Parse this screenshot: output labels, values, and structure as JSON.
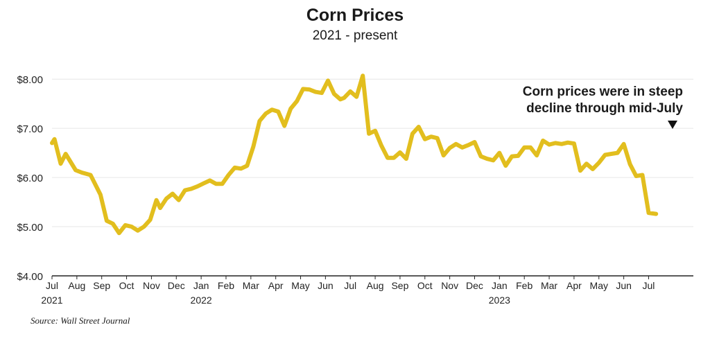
{
  "chart_data": {
    "type": "line",
    "title": "Corn Prices",
    "subtitle": "2021 - present",
    "xlabel": "",
    "ylabel": "",
    "ylim": [
      4,
      8.2
    ],
    "yticks": [
      4,
      5,
      6,
      7,
      8
    ],
    "ytick_labels": [
      "$4.00",
      "$5.00",
      "$6.00",
      "$7.00",
      "$8.00"
    ],
    "xlim": [
      0,
      25.8
    ],
    "xticks": [
      {
        "pos": 0,
        "label": "Jul",
        "year": "2021"
      },
      {
        "pos": 1,
        "label": "Aug",
        "year": ""
      },
      {
        "pos": 2,
        "label": "Sep",
        "year": ""
      },
      {
        "pos": 3,
        "label": "Oct",
        "year": ""
      },
      {
        "pos": 4,
        "label": "Nov",
        "year": ""
      },
      {
        "pos": 5,
        "label": "Dec",
        "year": ""
      },
      {
        "pos": 6,
        "label": "Jan",
        "year": "2022"
      },
      {
        "pos": 7,
        "label": "Feb",
        "year": ""
      },
      {
        "pos": 8,
        "label": "Mar",
        "year": ""
      },
      {
        "pos": 9,
        "label": "Apr",
        "year": ""
      },
      {
        "pos": 10,
        "label": "May",
        "year": ""
      },
      {
        "pos": 11,
        "label": "Jun",
        "year": ""
      },
      {
        "pos": 12,
        "label": "Jul",
        "year": ""
      },
      {
        "pos": 13,
        "label": "Aug",
        "year": ""
      },
      {
        "pos": 14,
        "label": "Sep",
        "year": ""
      },
      {
        "pos": 15,
        "label": "Oct",
        "year": ""
      },
      {
        "pos": 16,
        "label": "Nov",
        "year": ""
      },
      {
        "pos": 17,
        "label": "Dec",
        "year": ""
      },
      {
        "pos": 18,
        "label": "Jan",
        "year": "2023"
      },
      {
        "pos": 19,
        "label": "Feb",
        "year": ""
      },
      {
        "pos": 20,
        "label": "Mar",
        "year": ""
      },
      {
        "pos": 21,
        "label": "Apr",
        "year": ""
      },
      {
        "pos": 22,
        "label": "May",
        "year": ""
      },
      {
        "pos": 23,
        "label": "Jun",
        "year": ""
      },
      {
        "pos": 24,
        "label": "Jul",
        "year": ""
      }
    ],
    "grid": true,
    "line_color": "#E2BE1E",
    "series": [
      {
        "name": "",
        "x": [
          0,
          0.1,
          0.35,
          0.55,
          0.95,
          1.2,
          1.55,
          1.95,
          2.2,
          2.45,
          2.7,
          2.95,
          3.2,
          3.45,
          3.7,
          3.95,
          4.2,
          4.35,
          4.6,
          4.85,
          5.1,
          5.35,
          5.6,
          5.85,
          6.1,
          6.35,
          6.6,
          6.85,
          7.1,
          7.35,
          7.6,
          7.85,
          8.1,
          8.35,
          8.6,
          8.85,
          9.1,
          9.35,
          9.6,
          9.85,
          10.1,
          10.35,
          10.6,
          10.85,
          11.1,
          11.35,
          11.6,
          11.75,
          12.0,
          12.25,
          12.5,
          12.75,
          13.0,
          13.25,
          13.5,
          13.75,
          14.0,
          14.25,
          14.5,
          14.75,
          15.0,
          15.25,
          15.5,
          15.75,
          16.0,
          16.25,
          16.5,
          16.75,
          17.0,
          17.25,
          17.5,
          17.75,
          18.0,
          18.25,
          18.5,
          18.75,
          19.0,
          19.25,
          19.5,
          19.75,
          20.0,
          20.25,
          20.5,
          20.75,
          21.0,
          21.25,
          21.5,
          21.75,
          22.0,
          22.25,
          22.5,
          22.75,
          23.0,
          23.25,
          23.5,
          23.75,
          24.0,
          24.3
        ],
        "y": [
          6.7,
          6.78,
          6.28,
          6.48,
          6.15,
          6.1,
          6.05,
          5.65,
          5.12,
          5.06,
          4.87,
          5.03,
          5.0,
          4.92,
          5.0,
          5.14,
          5.54,
          5.38,
          5.57,
          5.67,
          5.54,
          5.74,
          5.77,
          5.82,
          5.88,
          5.94,
          5.87,
          5.87,
          6.05,
          6.2,
          6.18,
          6.24,
          6.63,
          7.15,
          7.3,
          7.38,
          7.34,
          7.05,
          7.4,
          7.55,
          7.8,
          7.79,
          7.74,
          7.72,
          7.97,
          7.7,
          7.59,
          7.62,
          7.75,
          7.64,
          8.07,
          6.89,
          6.95,
          6.65,
          6.4,
          6.4,
          6.51,
          6.38,
          6.89,
          7.03,
          6.78,
          6.83,
          6.8,
          6.45,
          6.6,
          6.68,
          6.61,
          6.66,
          6.72,
          6.43,
          6.38,
          6.35,
          6.5,
          6.24,
          6.43,
          6.44,
          6.61,
          6.61,
          6.45,
          6.75,
          6.67,
          6.7,
          6.68,
          6.71,
          6.69,
          6.14,
          6.28,
          6.17,
          6.3,
          6.46,
          6.48,
          6.5,
          6.68,
          6.27,
          6.03,
          6.05,
          5.28,
          5.26
        ]
      }
    ],
    "annotation": {
      "lines": [
        "Corn prices were in steep",
        "decline through mid-July"
      ],
      "marker": "down-triangle"
    },
    "source": "Source: Wall Street Journal"
  }
}
